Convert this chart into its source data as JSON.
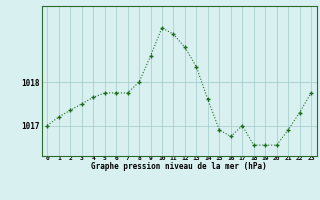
{
  "x": [
    0,
    1,
    2,
    3,
    4,
    5,
    6,
    7,
    8,
    9,
    10,
    11,
    12,
    13,
    14,
    15,
    16,
    17,
    18,
    19,
    20,
    21,
    22,
    23
  ],
  "y": [
    1017.0,
    1017.2,
    1017.35,
    1017.5,
    1017.65,
    1017.75,
    1017.75,
    1017.75,
    1018.0,
    1018.6,
    1019.25,
    1019.1,
    1018.8,
    1018.35,
    1017.6,
    1016.9,
    1016.75,
    1017.0,
    1016.55,
    1016.55,
    1016.55,
    1016.9,
    1017.3,
    1017.75
  ],
  "line_color": "#1a6b1a",
  "marker_color": "#1a6b1a",
  "bg_color": "#d8f0f0",
  "grid_color": "#a0c8c8",
  "xlabel": "Graphe pression niveau de la mer (hPa)",
  "ylim_min": 1016.3,
  "ylim_max": 1019.75,
  "ytick_values": [
    1017,
    1018
  ],
  "xtick_labels": [
    "0",
    "1",
    "2",
    "3",
    "4",
    "5",
    "6",
    "7",
    "8",
    "9",
    "10",
    "11",
    "12",
    "13",
    "14",
    "15",
    "16",
    "17",
    "18",
    "19",
    "20",
    "21",
    "22",
    "23"
  ],
  "fig_width": 3.2,
  "fig_height": 2.0,
  "dpi": 100
}
